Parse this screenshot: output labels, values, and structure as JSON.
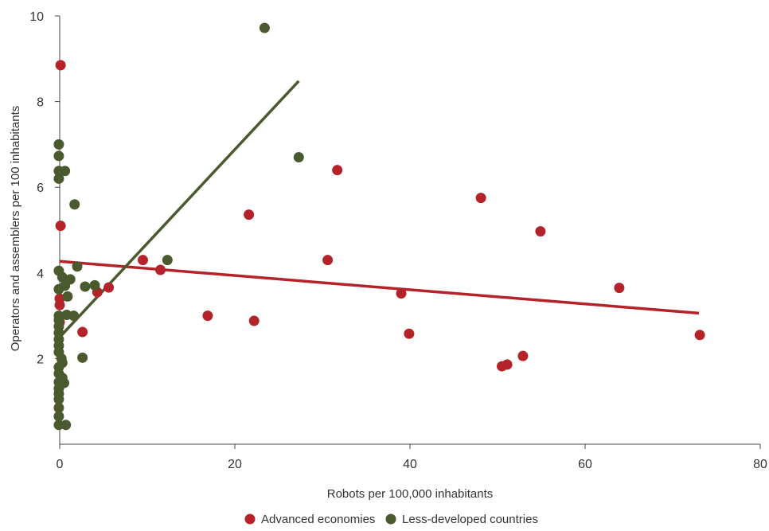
{
  "chart_data": {
    "type": "scatter",
    "title": "",
    "xlabel": "Robots per 100,000 inhabitants",
    "ylabel": "Operators and assemblers per 100 inhabitants",
    "xlim": [
      0,
      80
    ],
    "ylim": [
      0,
      10
    ],
    "xticks": [
      0,
      20,
      40,
      60,
      80
    ],
    "yticks": [
      2,
      4,
      6,
      8,
      10
    ],
    "grid": false,
    "legend_position": "bottom-center",
    "series": [
      {
        "name": "Advanced economies",
        "color": "#b5232a",
        "points": [
          [
            0.1,
            8.85
          ],
          [
            0.1,
            5.1
          ],
          [
            0.0,
            3.4
          ],
          [
            0.0,
            3.25
          ],
          [
            0.0,
            2.85
          ],
          [
            2.6,
            2.62
          ],
          [
            4.3,
            3.55
          ],
          [
            5.6,
            3.66
          ],
          [
            9.5,
            4.3
          ],
          [
            11.5,
            4.07
          ],
          [
            16.9,
            3.0
          ],
          [
            21.6,
            5.36
          ],
          [
            22.2,
            2.88
          ],
          [
            30.6,
            4.3
          ],
          [
            31.7,
            6.4
          ],
          [
            39.0,
            3.52
          ],
          [
            39.9,
            2.58
          ],
          [
            48.1,
            5.75
          ],
          [
            50.5,
            1.82
          ],
          [
            51.1,
            1.86
          ],
          [
            52.9,
            2.06
          ],
          [
            54.9,
            4.97
          ],
          [
            63.9,
            3.65
          ],
          [
            73.1,
            2.55
          ]
        ],
        "trend": [
          [
            0,
            4.27
          ],
          [
            73,
            3.06
          ]
        ]
      },
      {
        "name": "Less-developed countries",
        "color": "#4a5a2e",
        "points": [
          [
            23.4,
            9.72
          ],
          [
            27.3,
            6.7
          ],
          [
            -0.1,
            7.0
          ],
          [
            -0.1,
            6.73
          ],
          [
            -0.1,
            6.38
          ],
          [
            -0.1,
            6.2
          ],
          [
            0.6,
            6.38
          ],
          [
            1.7,
            5.6
          ],
          [
            2.0,
            4.15
          ],
          [
            -0.1,
            4.05
          ],
          [
            0.3,
            3.9
          ],
          [
            1.2,
            3.85
          ],
          [
            0.6,
            3.7
          ],
          [
            -0.1,
            3.62
          ],
          [
            0.9,
            3.45
          ],
          [
            2.9,
            3.68
          ],
          [
            4.0,
            3.71
          ],
          [
            12.3,
            4.3
          ],
          [
            0.8,
            3.02
          ],
          [
            1.6,
            3.0
          ],
          [
            -0.1,
            3.0
          ],
          [
            -0.1,
            2.9
          ],
          [
            -0.1,
            2.75
          ],
          [
            -0.1,
            2.6
          ],
          [
            -0.1,
            2.45
          ],
          [
            -0.1,
            2.3
          ],
          [
            -0.1,
            2.15
          ],
          [
            0.2,
            2.0
          ],
          [
            2.6,
            2.02
          ],
          [
            0.3,
            1.9
          ],
          [
            -0.1,
            1.8
          ],
          [
            -0.1,
            1.65
          ],
          [
            0.3,
            1.55
          ],
          [
            -0.1,
            1.45
          ],
          [
            0.5,
            1.43
          ],
          [
            -0.1,
            1.3
          ],
          [
            -0.1,
            1.18
          ],
          [
            -0.1,
            1.05
          ],
          [
            -0.1,
            0.85
          ],
          [
            -0.1,
            0.65
          ],
          [
            -0.1,
            0.45
          ],
          [
            0.7,
            0.45
          ]
        ],
        "trend": [
          [
            0,
            2.5
          ],
          [
            27.3,
            8.48
          ]
        ]
      }
    ]
  }
}
